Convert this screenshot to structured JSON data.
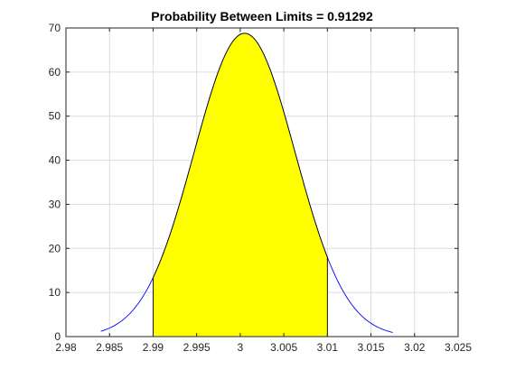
{
  "chart_data": {
    "type": "area",
    "title": "Probability Between Limits = 0.91292",
    "xlim": [
      2.98,
      3.025
    ],
    "ylim": [
      0,
      70
    ],
    "xticks": [
      "2.98",
      "2.985",
      "2.99",
      "2.995",
      "3",
      "3.005",
      "3.01",
      "3.015",
      "3.02",
      "3.025"
    ],
    "xtick_values": [
      2.98,
      2.985,
      2.99,
      2.995,
      3.0,
      3.005,
      3.01,
      3.015,
      3.02,
      3.025
    ],
    "yticks": [
      "0",
      "10",
      "20",
      "30",
      "40",
      "50",
      "60",
      "70"
    ],
    "ytick_values": [
      0,
      10,
      20,
      30,
      40,
      50,
      60,
      70
    ],
    "grid": true,
    "distribution": {
      "name": "normal",
      "mean": 3.0005,
      "sigma": 0.0058
    },
    "curve_range": [
      2.984,
      3.0175
    ],
    "shaded_region": {
      "lower": 2.99,
      "upper": 3.01,
      "probability": 0.91292
    },
    "colors": {
      "curve": "#0000ff",
      "fill": "#ffff00",
      "fill_edge": "#000000",
      "baseline": "#00aaaa"
    }
  }
}
